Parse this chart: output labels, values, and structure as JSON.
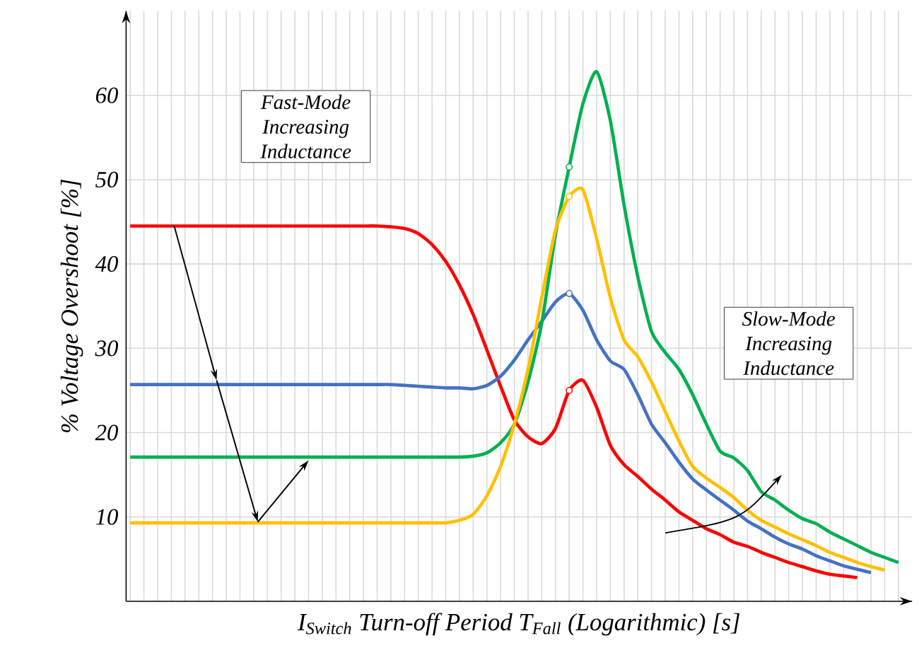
{
  "chart_data": {
    "type": "line",
    "xlabel": "I$_{Switch}$ Turn-off Period T$_{Fall}$ (Logarithmic) [s]",
    "ylabel": "% Voltage Overshoot [%]",
    "annotations": [
      "Fast-Mode Increasing Inductance",
      "Slow-Mode Increasing Inductance"
    ],
    "categories": [
      null,
      null,
      null,
      null,
      null,
      null,
      null,
      null,
      null,
      null,
      null,
      null,
      null,
      null,
      null,
      null,
      null,
      null,
      null,
      null,
      null,
      null,
      null,
      null,
      null,
      null,
      null,
      null,
      null,
      null,
      null,
      null,
      null,
      null,
      null,
      null,
      null,
      null,
      null,
      null,
      null,
      null,
      null,
      null,
      null,
      null,
      null,
      null,
      null,
      null,
      null,
      null,
      null,
      null,
      null,
      null,
      null
    ],
    "ylim": [
      0,
      70
    ],
    "yticks": [
      10,
      20,
      30,
      40,
      50,
      60
    ],
    "tick_labels": "y",
    "grid": true,
    "series": [
      {
        "color": "#ff0000",
        "values": [
          44.5,
          44.5,
          44.5,
          44.5,
          44.5,
          44.5,
          44.5,
          44.5,
          44.5,
          44.5,
          44.5,
          44.5,
          44.5,
          44.5,
          44.5,
          44.5,
          44.5,
          44.5,
          44.5,
          44.4,
          44.2,
          43.6,
          42.3,
          40.3,
          37.5,
          34,
          29.8,
          25.5,
          21.5,
          19.5,
          18.7,
          20.5,
          25,
          26.2,
          23,
          18.5,
          16.2,
          14.8,
          13.3,
          12,
          10.6,
          9.6,
          8.6,
          7.9,
          7,
          6.5,
          5.8,
          5.2,
          4.6,
          4.1,
          3.6,
          3.2,
          3,
          2.8,
          null,
          null,
          null
        ]
      },
      {
        "color": "#4472c4",
        "values": [
          25.7,
          25.7,
          25.7,
          25.7,
          25.7,
          25.7,
          25.7,
          25.7,
          25.7,
          25.7,
          25.7,
          25.7,
          25.7,
          25.7,
          25.7,
          25.7,
          25.7,
          25.7,
          25.7,
          25.7,
          25.6,
          25.5,
          25.4,
          25.3,
          25.3,
          25.2,
          25.6,
          26.7,
          28.6,
          31,
          33.2,
          35.5,
          36.5,
          34.5,
          31,
          28.5,
          27.5,
          24.5,
          21,
          18.8,
          16.5,
          14.5,
          13.2,
          12,
          10.8,
          9.5,
          8.6,
          7.6,
          6.8,
          6.2,
          5.4,
          4.8,
          4.2,
          3.8,
          3.4,
          null,
          null
        ]
      },
      {
        "color": "#00b050",
        "values": [
          17.1,
          17.1,
          17.1,
          17.1,
          17.1,
          17.1,
          17.1,
          17.1,
          17.1,
          17.1,
          17.1,
          17.1,
          17.1,
          17.1,
          17.1,
          17.1,
          17.1,
          17.1,
          17.1,
          17.1,
          17.1,
          17.1,
          17.1,
          17.1,
          17.1,
          17.2,
          17.6,
          18.8,
          21,
          26,
          33,
          43.5,
          51.5,
          59,
          62.8,
          57,
          47,
          38.5,
          32,
          29.5,
          27.5,
          24.5,
          21,
          17.8,
          17,
          15.5,
          13,
          12,
          10.8,
          9.8,
          9.2,
          8.2,
          7.4,
          6.6,
          5.8,
          5.2,
          4.6
        ]
      },
      {
        "color": "#ffc000",
        "values": [
          9.3,
          9.3,
          9.3,
          9.3,
          9.3,
          9.3,
          9.3,
          9.3,
          9.3,
          9.3,
          9.3,
          9.3,
          9.3,
          9.3,
          9.3,
          9.3,
          9.3,
          9.3,
          9.3,
          9.3,
          9.3,
          9.3,
          9.3,
          9.3,
          9.6,
          10.3,
          12.5,
          16,
          21,
          27.5,
          36,
          44,
          48,
          48.8,
          43,
          36,
          31,
          29,
          26,
          22.5,
          19,
          16,
          14.6,
          13.5,
          12.3,
          10.8,
          9.6,
          8.8,
          8,
          7.3,
          6.6,
          5.8,
          5.2,
          4.6,
          4.1,
          3.7,
          null
        ]
      },
      {
        "type": "scatter",
        "marker": "circle",
        "color": "#ff0000",
        "values": [
          null,
          null,
          null,
          null,
          null,
          null,
          null,
          null,
          null,
          null,
          null,
          null,
          null,
          null,
          null,
          null,
          null,
          null,
          null,
          null,
          null,
          null,
          null,
          null,
          null,
          null,
          null,
          null,
          null,
          null,
          null,
          null,
          25,
          null,
          null,
          null,
          null,
          null,
          null,
          null,
          null,
          null,
          null,
          null,
          null,
          null,
          null,
          null,
          null,
          null,
          null,
          null,
          null,
          null,
          null,
          null,
          null
        ]
      },
      {
        "type": "scatter",
        "marker": "circle",
        "color": "#4472c4",
        "values": [
          null,
          null,
          null,
          null,
          null,
          null,
          null,
          null,
          null,
          null,
          null,
          null,
          null,
          null,
          null,
          null,
          null,
          null,
          null,
          null,
          null,
          null,
          null,
          null,
          null,
          null,
          null,
          null,
          null,
          null,
          null,
          null,
          36.5,
          null,
          null,
          null,
          null,
          null,
          null,
          null,
          null,
          null,
          null,
          null,
          null,
          null,
          null,
          null,
          null,
          null,
          null,
          null,
          null,
          null,
          null,
          null,
          null
        ]
      },
      {
        "type": "scatter",
        "marker": "circle",
        "color": "#00b050",
        "values": [
          null,
          null,
          null,
          null,
          null,
          null,
          null,
          null,
          null,
          null,
          null,
          null,
          null,
          null,
          null,
          null,
          null,
          null,
          null,
          null,
          null,
          null,
          null,
          null,
          null,
          null,
          null,
          null,
          null,
          null,
          null,
          null,
          51.5,
          null,
          null,
          null,
          null,
          null,
          null,
          null,
          null,
          null,
          null,
          null,
          null,
          null,
          null,
          null,
          null,
          null,
          null,
          null,
          null,
          null,
          null,
          null,
          null
        ]
      },
      {
        "type": "scatter",
        "marker": "circle",
        "color": "#ffc000",
        "values": [
          null,
          null,
          null,
          null,
          null,
          null,
          null,
          null,
          null,
          null,
          null,
          null,
          null,
          null,
          null,
          null,
          null,
          null,
          null,
          null,
          null,
          null,
          null,
          null,
          null,
          null,
          null,
          null,
          null,
          null,
          null,
          null,
          48,
          null,
          null,
          null,
          null,
          null,
          null,
          null,
          null,
          null,
          null,
          null,
          null,
          null,
          null,
          null,
          null,
          null,
          null,
          null,
          null,
          null,
          null,
          null,
          null
        ]
      }
    ]
  }
}
